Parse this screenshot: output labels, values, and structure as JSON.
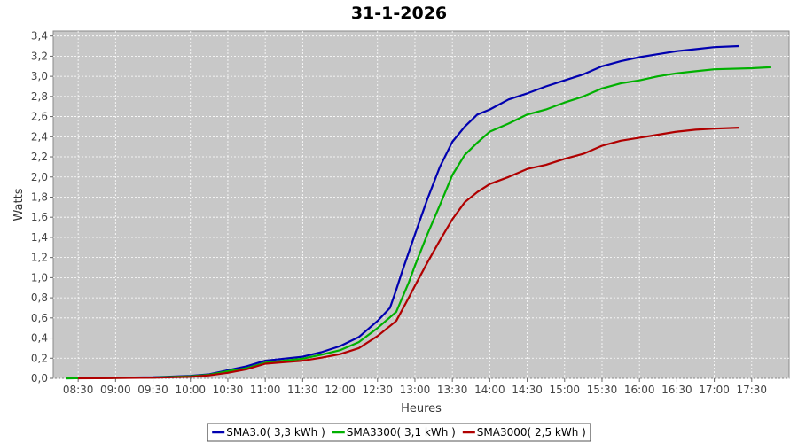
{
  "chart_data": {
    "type": "line",
    "title": "31-1-2026",
    "xlabel": "Heures",
    "ylabel": "Watts",
    "x_unit": "time",
    "xlim": [
      "08:10",
      "18:00"
    ],
    "ylim": [
      0,
      3.45
    ],
    "x_ticks": [
      "08:30",
      "09:00",
      "09:30",
      "10:00",
      "10:30",
      "11:00",
      "11:30",
      "12:00",
      "12:30",
      "13:00",
      "13:30",
      "14:00",
      "14:30",
      "15:00",
      "15:30",
      "16:00",
      "16:30",
      "17:00",
      "17:30"
    ],
    "y_ticks": [
      "0,0",
      "0,2",
      "0,4",
      "0,6",
      "0,8",
      "1,0",
      "1,2",
      "1,4",
      "1,6",
      "1,8",
      "2,0",
      "2,2",
      "2,4",
      "2,6",
      "2,8",
      "3,0",
      "3,2",
      "3,4"
    ],
    "y_tick_values": [
      0,
      0.2,
      0.4,
      0.6,
      0.8,
      1.0,
      1.2,
      1.4,
      1.6,
      1.8,
      2.0,
      2.2,
      2.4,
      2.6,
      2.8,
      3.0,
      3.2,
      3.4
    ],
    "grid": true,
    "legend_position": "bottom",
    "series": [
      {
        "name": "SMA3.0( 3,3 kWh )",
        "color": "#0000b0",
        "points": [
          [
            "08:20",
            0.0
          ],
          [
            "09:00",
            0.005
          ],
          [
            "09:30",
            0.01
          ],
          [
            "10:00",
            0.025
          ],
          [
            "10:15",
            0.04
          ],
          [
            "10:30",
            0.08
          ],
          [
            "10:45",
            0.12
          ],
          [
            "11:00",
            0.175
          ],
          [
            "11:15",
            0.195
          ],
          [
            "11:30",
            0.215
          ],
          [
            "11:45",
            0.26
          ],
          [
            "12:00",
            0.32
          ],
          [
            "12:15",
            0.41
          ],
          [
            "12:30",
            0.57
          ],
          [
            "12:40",
            0.7
          ],
          [
            "12:45",
            0.88
          ],
          [
            "12:50",
            1.07
          ],
          [
            "13:00",
            1.43
          ],
          [
            "13:10",
            1.78
          ],
          [
            "13:20",
            2.1
          ],
          [
            "13:30",
            2.35
          ],
          [
            "13:40",
            2.5
          ],
          [
            "13:50",
            2.62
          ],
          [
            "14:00",
            2.67
          ],
          [
            "14:15",
            2.77
          ],
          [
            "14:30",
            2.83
          ],
          [
            "14:45",
            2.9
          ],
          [
            "15:00",
            2.96
          ],
          [
            "15:15",
            3.02
          ],
          [
            "15:30",
            3.1
          ],
          [
            "15:45",
            3.15
          ],
          [
            "16:00",
            3.19
          ],
          [
            "16:15",
            3.22
          ],
          [
            "16:30",
            3.25
          ],
          [
            "16:45",
            3.27
          ],
          [
            "17:00",
            3.29
          ],
          [
            "17:20",
            3.3
          ]
        ]
      },
      {
        "name": "SMA3300( 3,1 kWh )",
        "color": "#00b000",
        "points": [
          [
            "08:20",
            0.0
          ],
          [
            "09:00",
            0.004
          ],
          [
            "09:30",
            0.008
          ],
          [
            "10:00",
            0.02
          ],
          [
            "10:15",
            0.035
          ],
          [
            "10:30",
            0.07
          ],
          [
            "10:45",
            0.1
          ],
          [
            "11:00",
            0.155
          ],
          [
            "11:15",
            0.175
          ],
          [
            "11:30",
            0.195
          ],
          [
            "11:45",
            0.235
          ],
          [
            "12:00",
            0.28
          ],
          [
            "12:15",
            0.36
          ],
          [
            "12:30",
            0.5
          ],
          [
            "12:45",
            0.66
          ],
          [
            "12:55",
            0.95
          ],
          [
            "13:00",
            1.12
          ],
          [
            "13:10",
            1.43
          ],
          [
            "13:20",
            1.72
          ],
          [
            "13:30",
            2.02
          ],
          [
            "13:40",
            2.22
          ],
          [
            "13:50",
            2.34
          ],
          [
            "14:00",
            2.45
          ],
          [
            "14:15",
            2.53
          ],
          [
            "14:30",
            2.62
          ],
          [
            "14:45",
            2.67
          ],
          [
            "15:00",
            2.74
          ],
          [
            "15:15",
            2.8
          ],
          [
            "15:30",
            2.88
          ],
          [
            "15:45",
            2.93
          ],
          [
            "16:00",
            2.96
          ],
          [
            "16:15",
            3.0
          ],
          [
            "16:30",
            3.03
          ],
          [
            "16:45",
            3.05
          ],
          [
            "17:00",
            3.07
          ],
          [
            "17:30",
            3.08
          ],
          [
            "17:45",
            3.09
          ]
        ]
      },
      {
        "name": "SMA3000( 2,5 kWh )",
        "color": "#b00000",
        "points": [
          [
            "08:30",
            0.0
          ],
          [
            "09:00",
            0.003
          ],
          [
            "09:30",
            0.006
          ],
          [
            "10:00",
            0.015
          ],
          [
            "10:15",
            0.03
          ],
          [
            "10:30",
            0.055
          ],
          [
            "10:45",
            0.09
          ],
          [
            "11:00",
            0.145
          ],
          [
            "11:15",
            0.16
          ],
          [
            "11:30",
            0.175
          ],
          [
            "11:45",
            0.205
          ],
          [
            "12:00",
            0.24
          ],
          [
            "12:15",
            0.3
          ],
          [
            "12:30",
            0.42
          ],
          [
            "12:45",
            0.57
          ],
          [
            "12:55",
            0.8
          ],
          [
            "13:00",
            0.92
          ],
          [
            "13:10",
            1.15
          ],
          [
            "13:20",
            1.37
          ],
          [
            "13:30",
            1.58
          ],
          [
            "13:40",
            1.75
          ],
          [
            "13:50",
            1.85
          ],
          [
            "14:00",
            1.93
          ],
          [
            "14:15",
            2.0
          ],
          [
            "14:30",
            2.08
          ],
          [
            "14:45",
            2.12
          ],
          [
            "15:00",
            2.18
          ],
          [
            "15:15",
            2.23
          ],
          [
            "15:30",
            2.31
          ],
          [
            "15:45",
            2.36
          ],
          [
            "16:00",
            2.39
          ],
          [
            "16:15",
            2.42
          ],
          [
            "16:30",
            2.45
          ],
          [
            "16:45",
            2.47
          ],
          [
            "17:00",
            2.48
          ],
          [
            "17:20",
            2.49
          ]
        ]
      }
    ]
  }
}
